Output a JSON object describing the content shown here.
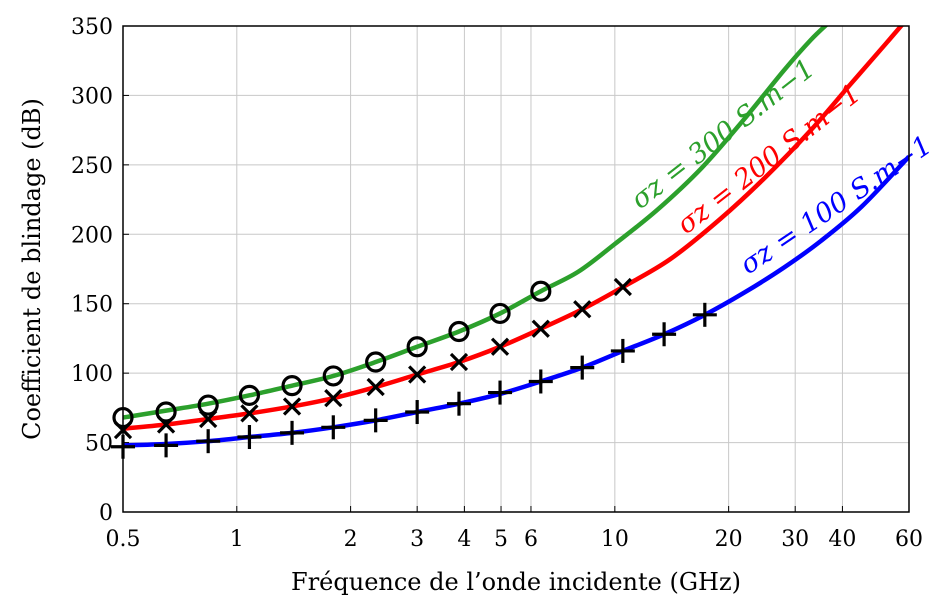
{
  "chart_data": {
    "type": "line",
    "title": "",
    "xlabel": "Fréquence de l’onde incidente (GHz)",
    "ylabel": "Coefficient de blindage (dB)",
    "x_scale": "log",
    "xlim": [
      0.5,
      60
    ],
    "ylim": [
      0,
      350
    ],
    "x_ticks": [
      0.5,
      1,
      2,
      3,
      4,
      5,
      6,
      10,
      20,
      30,
      40,
      60
    ],
    "x_tick_labels": [
      "0.5",
      "1",
      "2",
      "3",
      "4",
      "5",
      "6",
      "10",
      "20",
      "30",
      "40",
      "60"
    ],
    "y_ticks": [
      0,
      50,
      100,
      150,
      200,
      250,
      300,
      350
    ],
    "y_tick_labels": [
      "0",
      "50",
      "100",
      "150",
      "200",
      "250",
      "300",
      "350"
    ],
    "grid": true,
    "series": [
      {
        "name": "σz = 300 S.m−1",
        "label": "σz = 300 S.m−1",
        "color": "#2ca02c",
        "marker": "circle",
        "x": [
          0.5,
          0.65,
          0.84,
          1.08,
          1.4,
          1.8,
          2.33,
          3.0,
          3.87,
          4.97,
          6.37,
          8.0,
          10.0,
          13.0,
          17.0,
          22.0,
          28.0,
          33.0,
          37.0
        ],
        "values": [
          68,
          73,
          78,
          84,
          91,
          98,
          108,
          119,
          130,
          143,
          159,
          173,
          193,
          218,
          248,
          283,
          318,
          340,
          353
        ],
        "marker_x": [
          0.5,
          0.65,
          0.84,
          1.08,
          1.4,
          1.8,
          2.33,
          3.0,
          3.87,
          4.97,
          6.37
        ],
        "marker_y": [
          68,
          72,
          77,
          84,
          91,
          98,
          108,
          119,
          130,
          143,
          159
        ]
      },
      {
        "name": "σz = 200 S.m−1",
        "label": "σz = 200 S.m−1",
        "color": "#ff0000",
        "marker": "cross",
        "x": [
          0.5,
          0.65,
          0.84,
          1.08,
          1.4,
          1.8,
          2.33,
          3.0,
          3.87,
          4.97,
          6.37,
          8.2,
          10.5,
          14.0,
          19.0,
          25.0,
          33.0,
          42.0,
          52.0,
          58.0
        ],
        "values": [
          60,
          63,
          67,
          71,
          76,
          82,
          90,
          99,
          108,
          119,
          132,
          146,
          162,
          182,
          211,
          241,
          275,
          308,
          337,
          352
        ],
        "marker_x": [
          0.5,
          0.65,
          0.84,
          1.08,
          1.4,
          1.8,
          2.33,
          3.0,
          3.87,
          4.97,
          6.37,
          8.2,
          10.5
        ],
        "marker_y": [
          59,
          63,
          67,
          71,
          76,
          82,
          90,
          99,
          108,
          119,
          132,
          146,
          162
        ]
      },
      {
        "name": "σz = 100 S.m−1",
        "label": "σz = 100 S.m−1",
        "color": "#0000ff",
        "marker": "plus",
        "x": [
          0.5,
          0.65,
          0.84,
          1.08,
          1.4,
          1.8,
          2.33,
          3.0,
          3.87,
          4.97,
          6.37,
          8.2,
          10.5,
          13.5,
          17.3,
          22.0,
          28.0,
          35.0,
          45.0,
          60.0
        ],
        "values": [
          48,
          49,
          51,
          54,
          57,
          61,
          66,
          72,
          78,
          85,
          94,
          104,
          116,
          128,
          142,
          158,
          176,
          195,
          220,
          256
        ],
        "marker_x": [
          0.5,
          0.65,
          0.84,
          1.08,
          1.4,
          1.8,
          2.33,
          3.0,
          3.87,
          4.97,
          6.37,
          8.2,
          10.5,
          13.5,
          17.3
        ],
        "marker_y": [
          47,
          48,
          51,
          54,
          57,
          61,
          66,
          72,
          78,
          86,
          94,
          104,
          116,
          128,
          142
        ]
      }
    ]
  }
}
